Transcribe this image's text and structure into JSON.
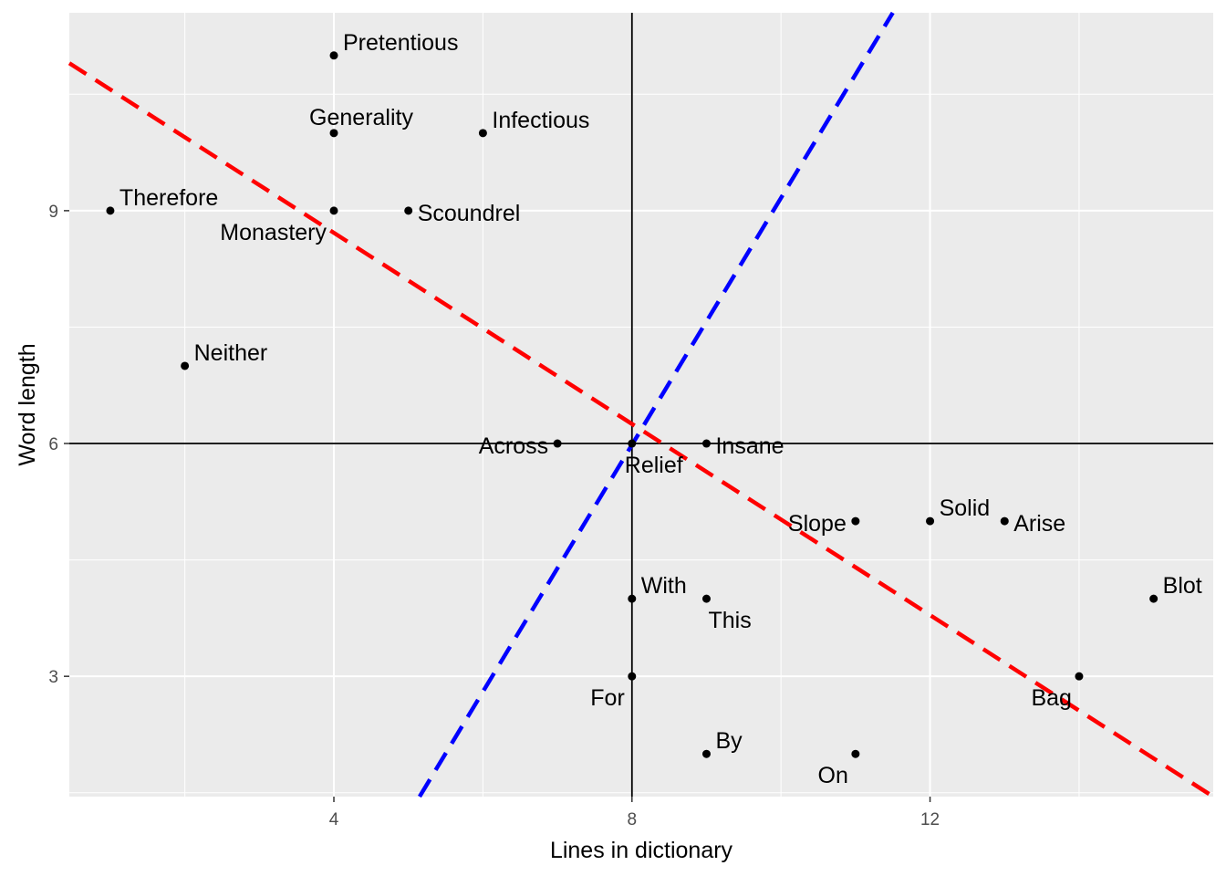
{
  "chart_data": {
    "type": "scatter",
    "xlabel": "Lines in dictionary",
    "ylabel": "Word length",
    "xlim": [
      0.45,
      15.8
    ],
    "ylim": [
      1.45,
      11.55
    ],
    "x_ticks": [
      4,
      8,
      12
    ],
    "y_ticks": [
      3,
      6,
      9
    ],
    "grid": true,
    "background": "#ebebeb",
    "grid_color": "#ffffff",
    "point_color": "#000000",
    "points": [
      {
        "word": "Pretentious",
        "x": 4,
        "y": 11,
        "label_pos": "upper-right"
      },
      {
        "word": "Generality",
        "x": 4,
        "y": 10,
        "label_pos": "top"
      },
      {
        "word": "Infectious",
        "x": 6,
        "y": 10,
        "label_pos": "upper-right"
      },
      {
        "word": "Therefore",
        "x": 1,
        "y": 9,
        "label_pos": "upper-right"
      },
      {
        "word": "Monastery",
        "x": 4,
        "y": 9,
        "label_pos": "lower-left"
      },
      {
        "word": "Scoundrel",
        "x": 5,
        "y": 9,
        "label_pos": "right"
      },
      {
        "word": "Neither",
        "x": 2,
        "y": 7,
        "label_pos": "upper-right"
      },
      {
        "word": "Across",
        "x": 7,
        "y": 6,
        "label_pos": "left"
      },
      {
        "word": "Insane",
        "x": 9,
        "y": 6,
        "label_pos": "right"
      },
      {
        "word": "Relief",
        "x": 8,
        "y": 6,
        "label_pos": "lower-right"
      },
      {
        "word": "Slope",
        "x": 11,
        "y": 5,
        "label_pos": "left"
      },
      {
        "word": "Solid",
        "x": 12,
        "y": 5,
        "label_pos": "upper-right"
      },
      {
        "word": "Arise",
        "x": 13,
        "y": 5,
        "label_pos": "right"
      },
      {
        "word": "With",
        "x": 8,
        "y": 4,
        "label_pos": "upper-right"
      },
      {
        "word": "This",
        "x": 9,
        "y": 4,
        "label_pos": "lower-right"
      },
      {
        "word": "Blot",
        "x": 15,
        "y": 4,
        "label_pos": "upper-right"
      },
      {
        "word": "For",
        "x": 8,
        "y": 3,
        "label_pos": "lower-left"
      },
      {
        "word": "Bag",
        "x": 14,
        "y": 3,
        "label_pos": "lower-left"
      },
      {
        "word": "By",
        "x": 9,
        "y": 2,
        "label_pos": "upper-right"
      },
      {
        "word": "On",
        "x": 11,
        "y": 2,
        "label_pos": "lower-left"
      }
    ],
    "reference_lines": {
      "vertical_x": 8,
      "horizontal_y": 6,
      "color": "#000000"
    },
    "dashed_lines": [
      {
        "color": "#ff0000",
        "points": [
          [
            0.45,
            10.9
          ],
          [
            15.8,
            1.45
          ]
        ]
      },
      {
        "color": "#0000ff",
        "points": [
          [
            5.15,
            1.45
          ],
          [
            11.5,
            11.55
          ]
        ]
      }
    ]
  }
}
